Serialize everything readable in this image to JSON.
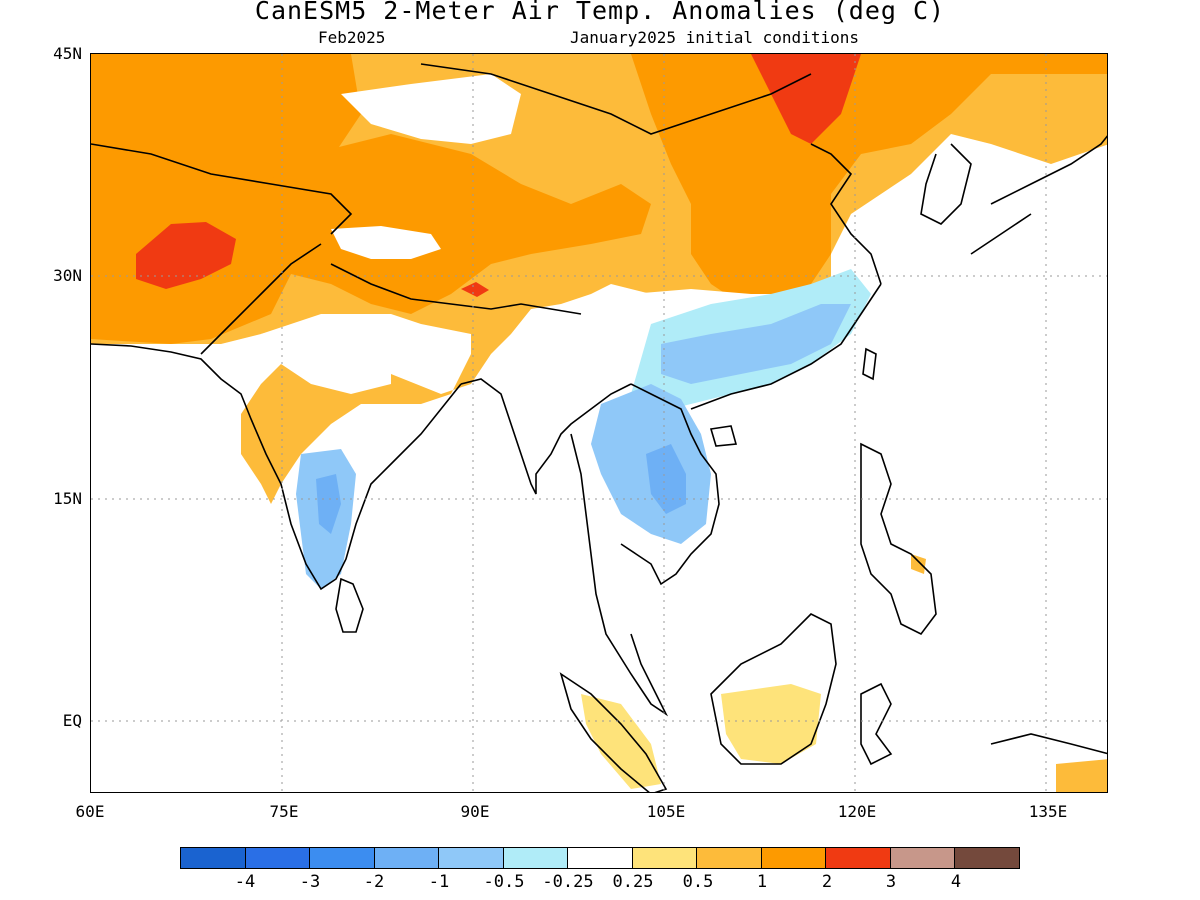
{
  "title": "CanESM5 2-Meter Air Temp. Anomalies (deg C)",
  "subtitle_left": "Feb2025",
  "subtitle_right": "January2025 initial conditions",
  "map": {
    "region": "South and East Asia",
    "lon_range": [
      60,
      140
    ],
    "lat_range": [
      -5,
      45
    ],
    "lat_labels": [
      {
        "lat": 45,
        "text": "45N"
      },
      {
        "lat": 30,
        "text": "30N"
      },
      {
        "lat": 15,
        "text": "15N"
      },
      {
        "lat": 0,
        "text": "EQ"
      }
    ],
    "lon_labels": [
      {
        "lon": 60,
        "text": "60E"
      },
      {
        "lon": 75,
        "text": "75E"
      },
      {
        "lon": 90,
        "text": "90E"
      },
      {
        "lon": 105,
        "text": "105E"
      },
      {
        "lon": 120,
        "text": "120E"
      },
      {
        "lon": 135,
        "text": "135E"
      }
    ],
    "grid_lines": "dotted"
  },
  "colorbar": {
    "colors": [
      "#1a63d0",
      "#2a6fe6",
      "#3c8df0",
      "#6eb0f5",
      "#8fc8f8",
      "#b0ecf8",
      "#ffffff",
      "#fee37a",
      "#fdbb3a",
      "#fd9a00",
      "#f03a12",
      "#c7978a",
      "#74493c"
    ],
    "labels": [
      "-4",
      "-3",
      "-2",
      "-1",
      "-0.5",
      "-0.25",
      "0.25",
      "0.5",
      "1",
      "2",
      "3",
      "4"
    ]
  }
}
